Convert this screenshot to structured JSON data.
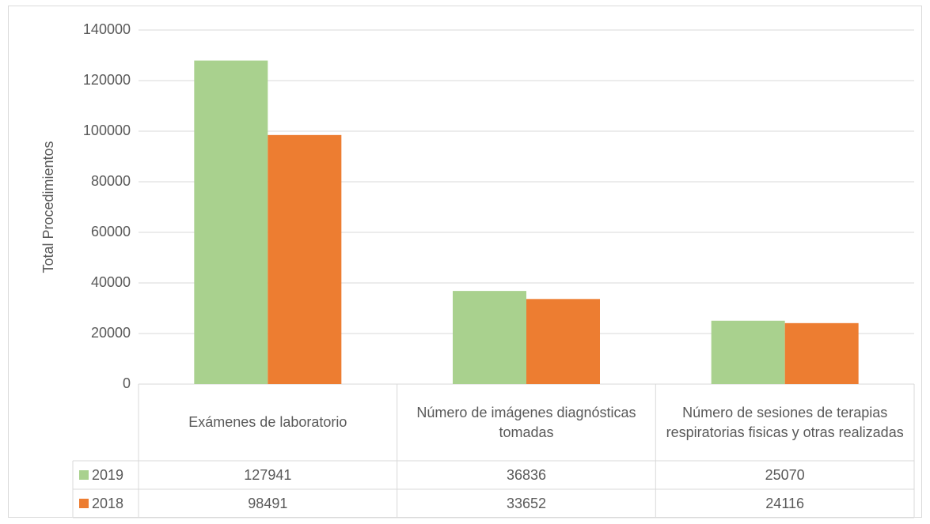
{
  "chart_data": {
    "type": "bar",
    "y_label": "Total Procedimientos",
    "categories": [
      "Exámenes de laboratorio",
      "Número de imágenes diagnósticas tomadas",
      "Número de sesiones de terapias respiratorias fisicas y otras realizadas"
    ],
    "series": [
      {
        "name": "2019",
        "color": "#a9d18e",
        "values": [
          127941,
          36836,
          25070
        ]
      },
      {
        "name": "2018",
        "color": "#ed7d31",
        "values": [
          98491,
          33652,
          24116
        ]
      }
    ],
    "ylim": [
      0,
      140000
    ],
    "yticks": [
      0,
      20000,
      40000,
      60000,
      80000,
      100000,
      120000,
      140000
    ],
    "grid": true,
    "legend": "data-table"
  }
}
